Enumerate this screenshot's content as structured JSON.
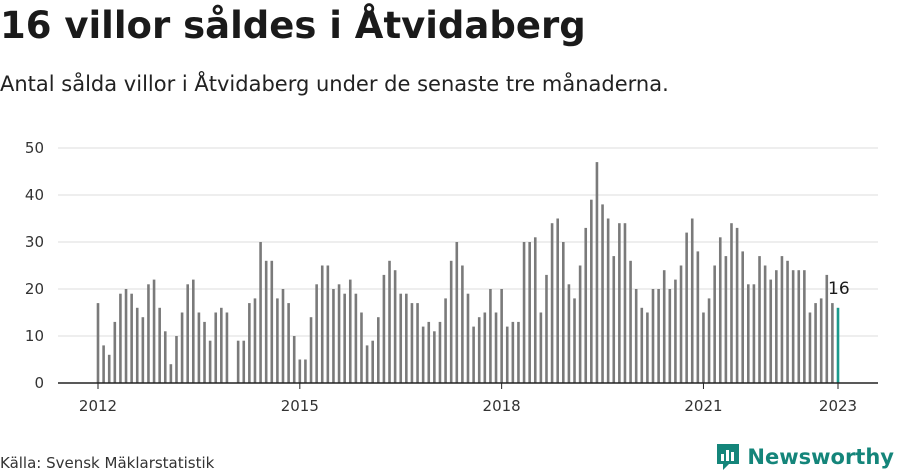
{
  "title": "16 villor såldes i Åtvidaberg",
  "subtitle": "Antal sålda villor i Åtvidaberg under de senaste tre månaderna.",
  "source": "Källa: Svensk Mäklarstatistik",
  "brand": {
    "name": "Newsworthy",
    "icon": "newsworthy-logo-icon",
    "color": "#14857a"
  },
  "colors": {
    "bar": "#7a7a7a",
    "highlight": "#1b9a8c",
    "grid": "#dcdcdc",
    "axis": "#222222"
  },
  "chart_data": {
    "type": "bar",
    "x_start": "2012-01",
    "x_end": "2023-01",
    "ylim": [
      0,
      50
    ],
    "yticks": [
      0,
      10,
      20,
      30,
      40,
      50
    ],
    "xticks": [
      "2012",
      "2015",
      "2018",
      "2021",
      "2023"
    ],
    "grid": true,
    "highlight_label": "16",
    "values": [
      17,
      8,
      6,
      13,
      19,
      20,
      19,
      16,
      14,
      21,
      22,
      16,
      11,
      4,
      10,
      15,
      21,
      22,
      15,
      13,
      9,
      15,
      16,
      15,
      0,
      9,
      9,
      17,
      18,
      30,
      26,
      26,
      18,
      20,
      17,
      10,
      5,
      5,
      14,
      21,
      25,
      25,
      20,
      21,
      19,
      22,
      19,
      15,
      8,
      9,
      14,
      23,
      26,
      24,
      19,
      19,
      17,
      17,
      12,
      13,
      11,
      13,
      18,
      26,
      30,
      25,
      19,
      12,
      14,
      15,
      20,
      15,
      20,
      12,
      13,
      13,
      30,
      30,
      31,
      15,
      23,
      34,
      35,
      30,
      21,
      18,
      25,
      33,
      39,
      47,
      38,
      35,
      27,
      34,
      34,
      26,
      20,
      16,
      15,
      20,
      20,
      24,
      20,
      22,
      25,
      32,
      35,
      28,
      15,
      18,
      25,
      31,
      27,
      34,
      33,
      28,
      21,
      21,
      27,
      25,
      22,
      24,
      27,
      26,
      24,
      24,
      24,
      15,
      17,
      18,
      23,
      17,
      16
    ]
  }
}
